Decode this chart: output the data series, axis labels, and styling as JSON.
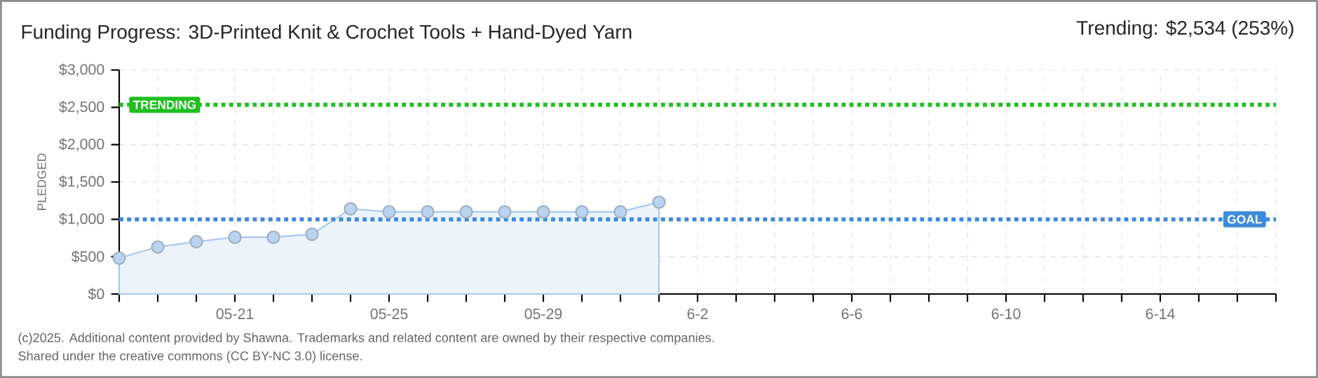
{
  "chart_data": {
    "type": "area",
    "title": "Funding Progress: 3D-Printed Knit & Crochet Tools + Hand-Dyed Yarn",
    "ylabel": "PLEDGED",
    "annotations": [
      "Trending: $2,534 (253%)",
      "(c)2025. Additional content provided by Shawna. Trademarks and related content are owned by their respective companies.",
      "Shared under the creative commons (CC BY-NC 3.0) license."
    ],
    "x": [
      "2025-05-18",
      "2025-05-19",
      "2025-05-20",
      "2025-05-21",
      "2025-05-22",
      "2025-05-23",
      "2025-05-24",
      "2025-05-25",
      "2025-05-26",
      "2025-05-27",
      "2025-05-28",
      "2025-05-29",
      "2025-05-30",
      "2025-05-31",
      "2025-06-01"
    ],
    "values": [
      480,
      630,
      700,
      760,
      760,
      800,
      1140,
      1100,
      1100,
      1100,
      1100,
      1100,
      1100,
      1100,
      1230
    ],
    "color": "#a8c8ee",
    "marker": "circle",
    "grid": true,
    "xlim": [
      "2025-05-18",
      "2025-06-17"
    ],
    "xticks": [
      {
        "value": "2025-05-18",
        "label": null
      },
      {
        "value": "2025-05-19",
        "label": null
      },
      {
        "value": "2025-05-20",
        "label": null
      },
      {
        "value": "2025-05-21",
        "label": "05-21"
      },
      {
        "value": "2025-05-22",
        "label": null
      },
      {
        "value": "2025-05-23",
        "label": null
      },
      {
        "value": "2025-05-24",
        "label": null
      },
      {
        "value": "2025-05-25",
        "label": "05-25"
      },
      {
        "value": "2025-05-26",
        "label": null
      },
      {
        "value": "2025-05-27",
        "label": null
      },
      {
        "value": "2025-05-28",
        "label": null
      },
      {
        "value": "2025-05-29",
        "label": "05-29"
      },
      {
        "value": "2025-05-30",
        "label": null
      },
      {
        "value": "2025-05-31",
        "label": null
      },
      {
        "value": "2025-06-01",
        "label": null
      },
      {
        "value": "2025-06-02",
        "label": "6-2"
      },
      {
        "value": "2025-06-03",
        "label": null
      },
      {
        "value": "2025-06-04",
        "label": null
      },
      {
        "value": "2025-06-05",
        "label": null
      },
      {
        "value": "2025-06-06",
        "label": "6-6"
      },
      {
        "value": "2025-06-07",
        "label": null
      },
      {
        "value": "2025-06-08",
        "label": null
      },
      {
        "value": "2025-06-09",
        "label": null
      },
      {
        "value": "2025-06-10",
        "label": "6-10"
      },
      {
        "value": "2025-06-11",
        "label": null
      },
      {
        "value": "2025-06-12",
        "label": null
      },
      {
        "value": "2025-06-13",
        "label": null
      },
      {
        "value": "2025-06-14",
        "label": "6-14"
      },
      {
        "value": "2025-06-15",
        "label": null
      },
      {
        "value": "2025-06-16",
        "label": null
      },
      {
        "value": "2025-06-17",
        "label": null
      }
    ],
    "ylim": [
      0,
      3000
    ],
    "yticks": [
      {
        "value": 0,
        "label": "$0"
      },
      {
        "value": 500,
        "label": "$500"
      },
      {
        "value": 1000,
        "label": "$1,000"
      },
      {
        "value": 1500,
        "label": "$1,500"
      },
      {
        "value": 2000,
        "label": "$2,000"
      },
      {
        "value": 2500,
        "label": "$2,500"
      },
      {
        "value": 3000,
        "label": "$3,000"
      }
    ],
    "ref_lines": [
      {
        "axis": "y",
        "value": 2534,
        "label": "TRENDING",
        "color": "#1fbf1f",
        "line_style": "dotted"
      },
      {
        "axis": "y",
        "value": 1000,
        "label": "GOAL",
        "color": "#3d8bdb",
        "line_style": "dotted"
      }
    ]
  }
}
